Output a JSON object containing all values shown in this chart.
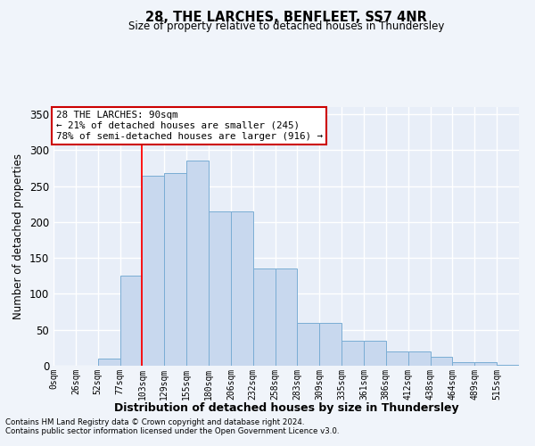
{
  "title_line1": "28, THE LARCHES, BENFLEET, SS7 4NR",
  "title_line2": "Size of property relative to detached houses in Thundersley",
  "xlabel": "Distribution of detached houses by size in Thundersley",
  "ylabel": "Number of detached properties",
  "bar_labels": [
    "0sqm",
    "26sqm",
    "52sqm",
    "77sqm",
    "103sqm",
    "129sqm",
    "155sqm",
    "180sqm",
    "206sqm",
    "232sqm",
    "258sqm",
    "283sqm",
    "309sqm",
    "335sqm",
    "361sqm",
    "386sqm",
    "412sqm",
    "438sqm",
    "464sqm",
    "489sqm",
    "515sqm"
  ],
  "bar_values": [
    0,
    0,
    10,
    125,
    265,
    268,
    285,
    215,
    215,
    135,
    135,
    60,
    60,
    35,
    35,
    20,
    20,
    12,
    5,
    5,
    1
  ],
  "bar_color": "#c8d8ee",
  "bar_edge_color": "#7aadd4",
  "background_color": "#e8eef8",
  "grid_color": "#ffffff",
  "red_line_x": 4.0,
  "annotation_text": "28 THE LARCHES: 90sqm\n← 21% of detached houses are smaller (245)\n78% of semi-detached houses are larger (916) →",
  "annotation_box_color": "#ffffff",
  "annotation_box_edge_color": "#cc0000",
  "ylim": [
    0,
    360
  ],
  "yticks": [
    0,
    50,
    100,
    150,
    200,
    250,
    300,
    350
  ],
  "footnote1": "Contains HM Land Registry data © Crown copyright and database right 2024.",
  "footnote2": "Contains public sector information licensed under the Open Government Licence v3.0."
}
